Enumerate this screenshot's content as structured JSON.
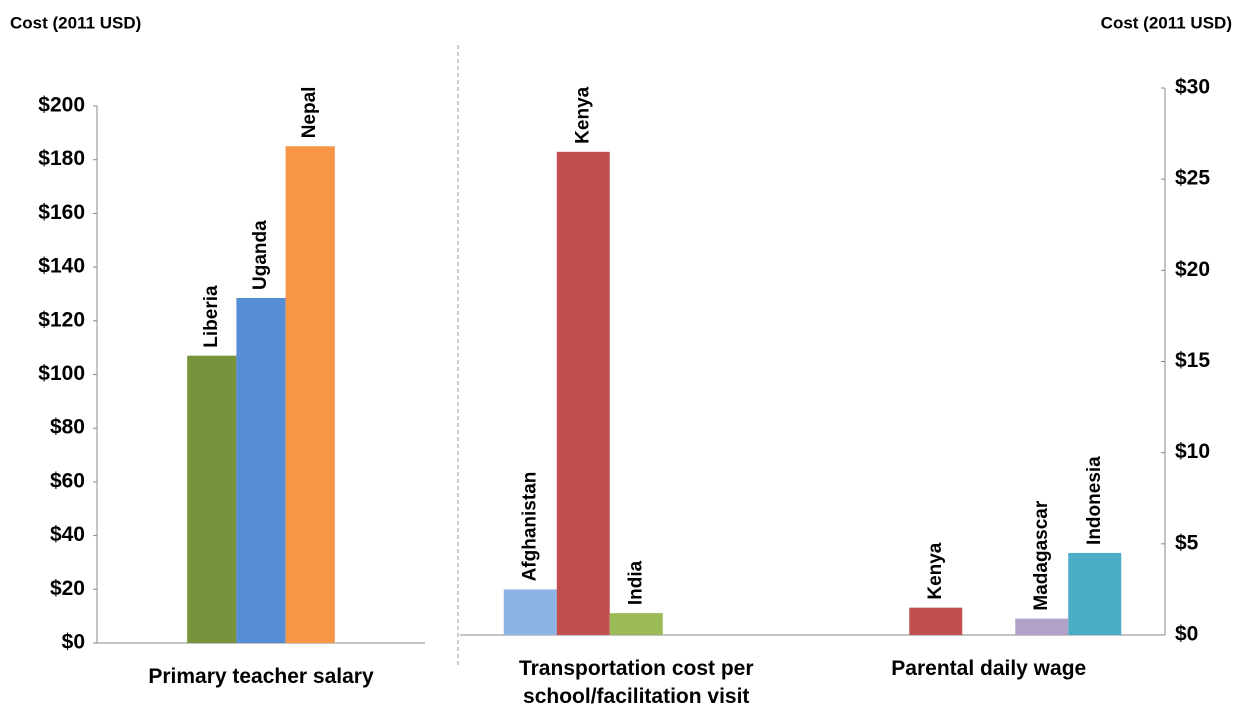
{
  "chart_data": [
    {
      "type": "bar",
      "y_label": "Cost (2011 USD)",
      "categories": [
        "Primary teacher salary"
      ],
      "series": [
        {
          "name": "Liberia",
          "color": "#77933c",
          "values": [
            107
          ]
        },
        {
          "name": "Uganda",
          "color": "#558ed5",
          "values": [
            128.5
          ]
        },
        {
          "name": "Nepal",
          "color": "#f79646",
          "values": [
            185
          ]
        }
      ],
      "ylim": [
        0,
        200
      ],
      "yticks": [
        {
          "value": 0,
          "label": "$0"
        },
        {
          "value": 20,
          "label": "$20"
        },
        {
          "value": 40,
          "label": "$40"
        },
        {
          "value": 60,
          "label": "$60"
        },
        {
          "value": 80,
          "label": "$80"
        },
        {
          "value": 100,
          "label": "$100"
        },
        {
          "value": 120,
          "label": "$120"
        },
        {
          "value": 140,
          "label": "$140"
        },
        {
          "value": 160,
          "label": "$160"
        },
        {
          "value": 180,
          "label": "$180"
        },
        {
          "value": 200,
          "label": "$200"
        }
      ]
    },
    {
      "type": "bar",
      "y_label": "Cost (2011 USD)",
      "categories": [
        "Transportation cost per school/facilitation visit",
        "Parental daily wage"
      ],
      "series": [
        {
          "name": "Afghanistan",
          "color": "#8eb4e3",
          "values": [
            2.5,
            null
          ]
        },
        {
          "name": "Kenya",
          "color": "#c0504d",
          "values": [
            26.5,
            1.5
          ]
        },
        {
          "name": "India",
          "color": "#9bbb59",
          "values": [
            1.2,
            null
          ]
        },
        {
          "name": "Madagascar",
          "color": "#b3a2c7",
          "values": [
            null,
            0.9
          ]
        },
        {
          "name": "Indonesia",
          "color": "#4bacc6",
          "values": [
            null,
            4.5
          ]
        }
      ],
      "y2lim": [
        0,
        30
      ],
      "y2ticks": [
        {
          "value": 0,
          "label": "$0"
        },
        {
          "value": 5,
          "label": "$5"
        },
        {
          "value": 10,
          "label": "$10"
        },
        {
          "value": 15,
          "label": "$15"
        },
        {
          "value": 20,
          "label": "$20"
        },
        {
          "value": 25,
          "label": "$25"
        },
        {
          "value": 30,
          "label": "$30"
        }
      ]
    }
  ]
}
